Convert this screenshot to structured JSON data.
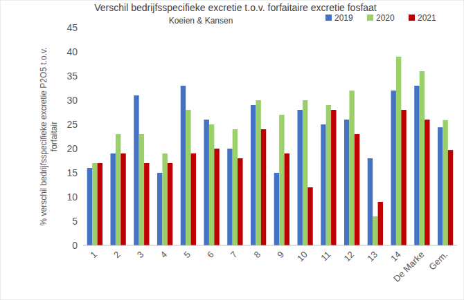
{
  "chart_data": {
    "type": "bar",
    "title": "Verschil bedrijfsspecifieke excretie t.o.v. forfaitaire excretie fosfaat",
    "subtitle": "Koeien & Kansen",
    "y_label": "% verschil bedrijfsspecifieke excretie P2O5 t.o.v. forfaitair",
    "categories": [
      "1",
      "2",
      "3",
      "4",
      "5",
      "6",
      "7",
      "8",
      "9",
      "10",
      "11",
      "12",
      "13",
      "14",
      "De Marke",
      "Gem."
    ],
    "series": [
      {
        "name": "2019",
        "color": "#4472c4",
        "values": [
          16,
          19,
          31,
          15,
          33,
          26,
          20,
          29,
          15,
          28,
          25,
          26,
          18,
          32,
          33,
          24.4
        ]
      },
      {
        "name": "2020",
        "color": "#9bcf6a",
        "values": [
          17,
          23,
          23,
          19,
          28,
          25,
          24,
          30,
          27,
          30,
          29,
          32,
          6,
          39,
          36,
          25.9
        ]
      },
      {
        "name": "2021",
        "color": "#c00000",
        "values": [
          17,
          19,
          17,
          17,
          19,
          20,
          18,
          24,
          19,
          12,
          28,
          23,
          9,
          28,
          26,
          19.7
        ]
      }
    ],
    "ylim": [
      0,
      45
    ],
    "yticks": [
      0,
      5,
      10,
      15,
      20,
      25,
      30,
      35,
      40,
      45
    ],
    "grid": false,
    "legend": "top-right"
  }
}
